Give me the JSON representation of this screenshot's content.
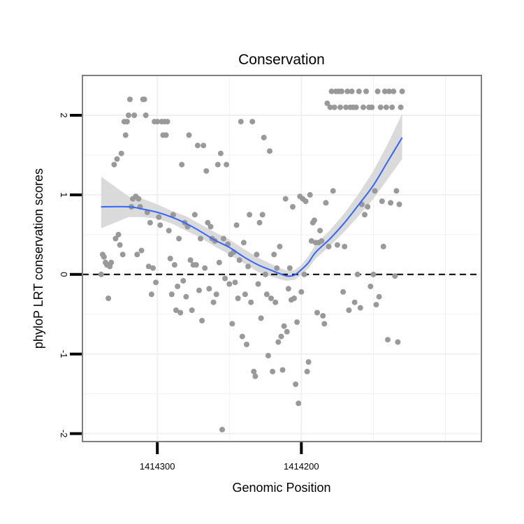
{
  "chart_data": {
    "type": "scatter",
    "title": "Conservation",
    "xlabel": "Genomic Position",
    "ylabel": "phyloP LRT conservation scores",
    "xlim": [
      1414352,
      1414075
    ],
    "ylim": [
      -2.1,
      2.5
    ],
    "x_ticks": [
      {
        "value": 1414300,
        "label": "1414300"
      },
      {
        "value": 1414200,
        "label": "1414200"
      }
    ],
    "y_ticks": [
      {
        "value": -2,
        "label": "-2"
      },
      {
        "value": -1,
        "label": "-1"
      },
      {
        "value": 0,
        "label": "0"
      },
      {
        "value": 1,
        "label": "1"
      },
      {
        "value": 2,
        "label": "2"
      }
    ],
    "reference_line": {
      "y": 0,
      "style": "dashed"
    },
    "colors": {
      "points": "#999999",
      "smooth_line": "#3366FF",
      "ribbon": "#d6d6d6",
      "panel_border": "#7f7f7f",
      "grid": "#f0f0f0"
    },
    "series": [
      {
        "name": "scores",
        "points": [
          [
            1414339,
            0.0
          ],
          [
            1414338,
            0.25
          ],
          [
            1414337,
            0.22
          ],
          [
            1414336,
            0.15
          ],
          [
            1414335,
            0.12
          ],
          [
            1414334,
            -0.3
          ],
          [
            1414333,
            0.1
          ],
          [
            1414332,
            0.15
          ],
          [
            1414330,
            1.38
          ],
          [
            1414329,
            0.45
          ],
          [
            1414328,
            1.45
          ],
          [
            1414327,
            0.5
          ],
          [
            1414326,
            0.37
          ],
          [
            1414325,
            1.52
          ],
          [
            1414324,
            0.25
          ],
          [
            1414323,
            1.92
          ],
          [
            1414322,
            1.75
          ],
          [
            1414321,
            1.92
          ],
          [
            1414320,
            2.0
          ],
          [
            1414319,
            2.2
          ],
          [
            1414318,
            0.85
          ],
          [
            1414317,
            0.95
          ],
          [
            1414316,
            2.0
          ],
          [
            1414315,
            0.98
          ],
          [
            1414314,
            0.25
          ],
          [
            1414313,
            0.95
          ],
          [
            1414312,
            0.85
          ],
          [
            1414311,
            0.3
          ],
          [
            1414310,
            2.2
          ],
          [
            1414309,
            2.2
          ],
          [
            1414308,
            2.0
          ],
          [
            1414307,
            0.78
          ],
          [
            1414306,
            0.1
          ],
          [
            1414305,
            0.65
          ],
          [
            1414304,
            -0.25
          ],
          [
            1414303,
            0.08
          ],
          [
            1414302,
            1.92
          ],
          [
            1414301,
            -0.1
          ],
          [
            1414300,
            1.92
          ],
          [
            1414299,
            0.72
          ],
          [
            1414298,
            0.62
          ],
          [
            1414297,
            1.92
          ],
          [
            1414296,
            1.75
          ],
          [
            1414295,
            1.92
          ],
          [
            1414294,
            1.75
          ],
          [
            1414293,
            1.92
          ],
          [
            1414292,
            0.55
          ],
          [
            1414291,
            0.2
          ],
          [
            1414290,
            -0.25
          ],
          [
            1414289,
            0.75
          ],
          [
            1414288,
            0.12
          ],
          [
            1414287,
            -0.45
          ],
          [
            1414286,
            -0.15
          ],
          [
            1414285,
            0.45
          ],
          [
            1414284,
            -0.48
          ],
          [
            1414283,
            1.38
          ],
          [
            1414282,
            -0.08
          ],
          [
            1414281,
            0.65
          ],
          [
            1414280,
            -0.28
          ],
          [
            1414279,
            0.6
          ],
          [
            1414278,
            1.75
          ],
          [
            1414277,
            0.18
          ],
          [
            1414276,
            -0.45
          ],
          [
            1414275,
            0.12
          ],
          [
            1414274,
            0.75
          ],
          [
            1414273,
            0.12
          ],
          [
            1414272,
            1.62
          ],
          [
            1414271,
            -0.2
          ],
          [
            1414270,
            0.45
          ],
          [
            1414269,
            -0.58
          ],
          [
            1414268,
            1.62
          ],
          [
            1414267,
            0.08
          ],
          [
            1414266,
            1.3
          ],
          [
            1414265,
            0.65
          ],
          [
            1414264,
            -0.18
          ],
          [
            1414263,
            0.6
          ],
          [
            1414262,
            0.45
          ],
          [
            1414261,
            -0.35
          ],
          [
            1414260,
            0.42
          ],
          [
            1414259,
            -0.25
          ],
          [
            1414258,
            1.38
          ],
          [
            1414257,
            0.15
          ],
          [
            1414256,
            1.52
          ],
          [
            1414255,
            -1.95
          ],
          [
            1414254,
            0.45
          ],
          [
            1414253,
            -0.05
          ],
          [
            1414252,
            1.38
          ],
          [
            1414251,
            0.38
          ],
          [
            1414250,
            -0.12
          ],
          [
            1414249,
            0.25
          ],
          [
            1414248,
            -0.62
          ],
          [
            1414247,
            0.28
          ],
          [
            1414246,
            -0.1
          ],
          [
            1414245,
            0.62
          ],
          [
            1414244,
            -0.3
          ],
          [
            1414243,
            0.18
          ],
          [
            1414242,
            1.92
          ],
          [
            1414241,
            -0.78
          ],
          [
            1414240,
            0.4
          ],
          [
            1414239,
            -0.25
          ],
          [
            1414238,
            -0.88
          ],
          [
            1414237,
            0.1
          ],
          [
            1414236,
            0.75
          ],
          [
            1414235,
            -0.35
          ],
          [
            1414234,
            1.92
          ],
          [
            1414233,
            -1.22
          ],
          [
            1414232,
            -1.28
          ],
          [
            1414231,
            0.25
          ],
          [
            1414230,
            -0.12
          ],
          [
            1414229,
            0.65
          ],
          [
            1414228,
            -0.55
          ],
          [
            1414227,
            0.75
          ],
          [
            1414226,
            1.72
          ],
          [
            1414225,
            0.0
          ],
          [
            1414224,
            -0.25
          ],
          [
            1414223,
            -1.02
          ],
          [
            1414222,
            1.55
          ],
          [
            1414221,
            -0.3
          ],
          [
            1414220,
            -1.22
          ],
          [
            1414219,
            0.25
          ],
          [
            1414218,
            -0.35
          ],
          [
            1414217,
            0.08
          ],
          [
            1414216,
            -0.85
          ],
          [
            1414215,
            0.35
          ],
          [
            1414214,
            -0.78
          ],
          [
            1414213,
            -1.2
          ],
          [
            1414212,
            -0.65
          ],
          [
            1414211,
            0.95
          ],
          [
            1414210,
            -0.72
          ],
          [
            1414209,
            -0.18
          ],
          [
            1414208,
            0.08
          ],
          [
            1414207,
            -0.32
          ],
          [
            1414206,
            0.85
          ],
          [
            1414205,
            -0.3
          ],
          [
            1414204,
            -1.38
          ],
          [
            1414203,
            -0.6
          ],
          [
            1414202,
            -1.62
          ],
          [
            1414201,
            0.98
          ],
          [
            1414200,
            -0.22
          ],
          [
            1414199,
            0.95
          ],
          [
            1414198,
            0.0
          ],
          [
            1414197,
            0.92
          ],
          [
            1414196,
            -1.22
          ],
          [
            1414195,
            -1.1
          ],
          [
            1414194,
            1.0
          ],
          [
            1414193,
            0.42
          ],
          [
            1414192,
            0.65
          ],
          [
            1414191,
            0.68
          ],
          [
            1414190,
            0.4
          ],
          [
            1414189,
            -0.48
          ],
          [
            1414188,
            0.4
          ],
          [
            1414187,
            0.55
          ],
          [
            1414186,
            0.42
          ],
          [
            1414185,
            -0.52
          ],
          [
            1414184,
            -0.62
          ],
          [
            1414183,
            0.9
          ],
          [
            1414182,
            2.15
          ],
          [
            1414181,
            0.35
          ],
          [
            1414180,
            2.1
          ],
          [
            1414179,
            2.3
          ],
          [
            1414178,
            1.05
          ],
          [
            1414177,
            2.1
          ],
          [
            1414176,
            2.3
          ],
          [
            1414175,
            0.37
          ],
          [
            1414174,
            2.3
          ],
          [
            1414173,
            2.1
          ],
          [
            1414172,
            2.3
          ],
          [
            1414171,
            -0.22
          ],
          [
            1414170,
            0.35
          ],
          [
            1414169,
            2.1
          ],
          [
            1414168,
            2.3
          ],
          [
            1414167,
            -0.45
          ],
          [
            1414166,
            2.1
          ],
          [
            1414165,
            2.3
          ],
          [
            1414164,
            2.1
          ],
          [
            1414163,
            -0.35
          ],
          [
            1414162,
            2.1
          ],
          [
            1414161,
            0.0
          ],
          [
            1414160,
            2.3
          ],
          [
            1414159,
            -0.42
          ],
          [
            1414158,
            0.88
          ],
          [
            1414157,
            2.1
          ],
          [
            1414156,
            0.75
          ],
          [
            1414155,
            2.3
          ],
          [
            1414154,
            0.85
          ],
          [
            1414153,
            2.1
          ],
          [
            1414152,
            -0.15
          ],
          [
            1414151,
            2.1
          ],
          [
            1414150,
            0.0
          ],
          [
            1414149,
            1.05
          ],
          [
            1414148,
            -0.38
          ],
          [
            1414147,
            2.3
          ],
          [
            1414146,
            -0.28
          ],
          [
            1414145,
            2.1
          ],
          [
            1414144,
            0.92
          ],
          [
            1414143,
            0.35
          ],
          [
            1414142,
            2.3
          ],
          [
            1414141,
            2.1
          ],
          [
            1414140,
            -0.82
          ],
          [
            1414139,
            2.3
          ],
          [
            1414138,
            0.9
          ],
          [
            1414137,
            2.1
          ],
          [
            1414136,
            2.3
          ],
          [
            1414135,
            -0.02
          ],
          [
            1414134,
            1.05
          ],
          [
            1414133,
            -0.85
          ],
          [
            1414132,
            0.88
          ],
          [
            1414131,
            2.1
          ],
          [
            1414130,
            2.3
          ]
        ]
      }
    ],
    "smooth": {
      "x": [
        1414339,
        1414320,
        1414310,
        1414300,
        1414290,
        1414280,
        1414270,
        1414260,
        1414250,
        1414240,
        1414230,
        1414222,
        1414215,
        1414210,
        1414205,
        1414200,
        1414195,
        1414190,
        1414180,
        1414170,
        1414160,
        1414150,
        1414140,
        1414130
      ],
      "y": [
        0.85,
        0.85,
        0.82,
        0.78,
        0.72,
        0.64,
        0.54,
        0.43,
        0.34,
        0.22,
        0.12,
        0.06,
        0.01,
        -0.02,
        -0.01,
        0.06,
        0.15,
        0.28,
        0.45,
        0.65,
        0.88,
        1.12,
        1.42,
        1.72
      ],
      "lower": [
        0.58,
        0.72,
        0.72,
        0.7,
        0.64,
        0.55,
        0.46,
        0.35,
        0.25,
        0.14,
        0.03,
        -0.02,
        -0.06,
        -0.08,
        -0.07,
        -0.01,
        0.08,
        0.2,
        0.36,
        0.54,
        0.74,
        0.95,
        1.2,
        1.45
      ],
      "upper": [
        1.23,
        0.98,
        0.95,
        0.88,
        0.8,
        0.73,
        0.63,
        0.53,
        0.44,
        0.32,
        0.21,
        0.14,
        0.08,
        0.05,
        0.05,
        0.12,
        0.23,
        0.38,
        0.56,
        0.77,
        1.02,
        1.3,
        1.64,
        2.02
      ]
    }
  }
}
